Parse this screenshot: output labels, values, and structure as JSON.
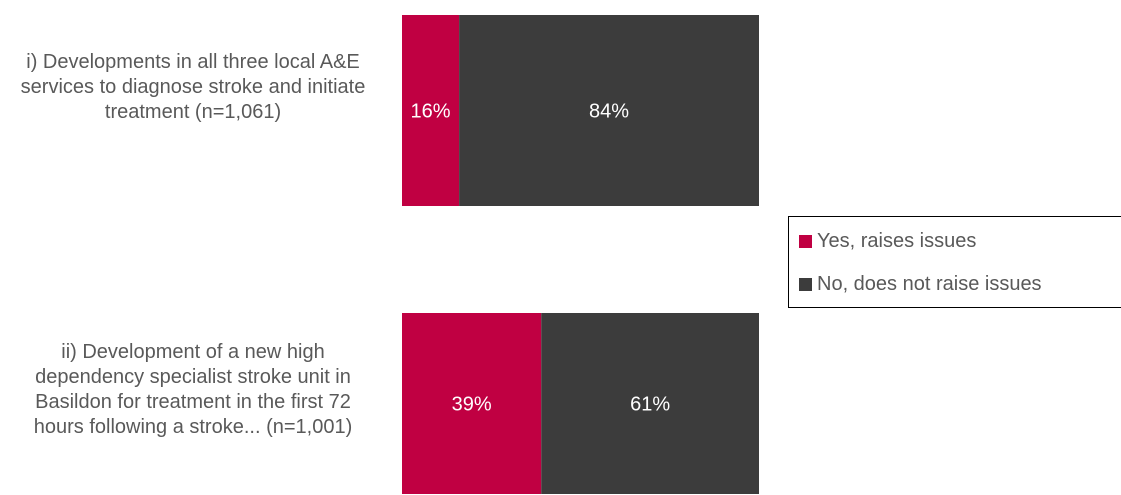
{
  "chart_data": {
    "type": "bar",
    "orientation": "horizontal",
    "stacked": true,
    "categories": [
      "i) Developments in all three local A&E services to diagnose stroke and initiate treatment (n=1,061)",
      "ii) Development of a new high dependency specialist stroke unit in Basildon for treatment in the first 72 hours following a stroke... (n=1,001)"
    ],
    "series": [
      {
        "name": "Yes, raises issues",
        "values": [
          16,
          39
        ],
        "labels": [
          "16%",
          "39%"
        ],
        "color": "#c00042"
      },
      {
        "name": "No, does not raise issues",
        "values": [
          84,
          61
        ],
        "labels": [
          "84%",
          "61%"
        ],
        "color": "#3c3c3c"
      }
    ],
    "xlim": [
      0,
      100
    ],
    "grid": false,
    "legend_position": "right",
    "title": "",
    "xlabel": "",
    "ylabel": ""
  }
}
